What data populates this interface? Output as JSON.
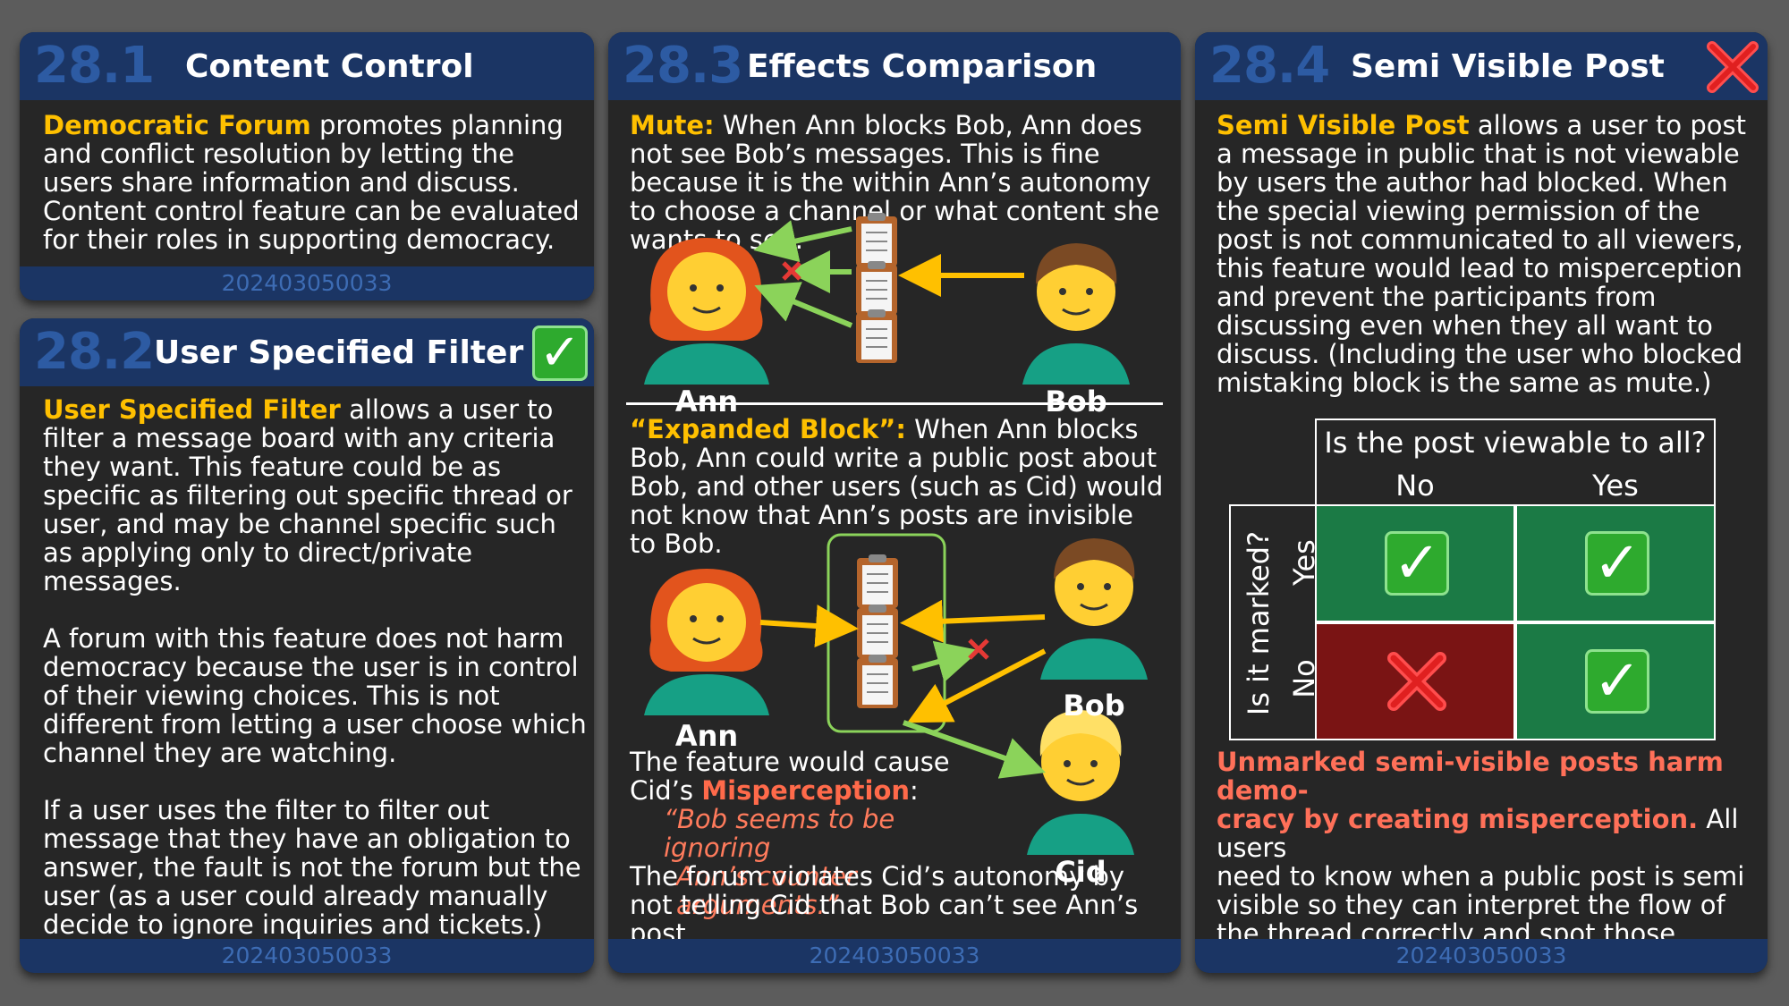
{
  "card1": {
    "number": "28.1",
    "title": "Content Control",
    "highlight": "Democratic Forum",
    "text": " promotes planning and conflict resolution by letting the users share information and discuss. Content control feature can be evaluated for their roles in supporting democracy.",
    "footer": "202403050033"
  },
  "card2": {
    "number": "28.2",
    "title": "User Specified Filter",
    "status_icon": "green-check-icon",
    "highlight": "User Specified Filter",
    "para1": " allows a user to filter a message board with any criteria they want. This feature could be as specific as filtering out specific thread or user, and may be channel specific such as applying only to direct/private messages.",
    "para2": "A forum with this feature does not harm democracy because the user is in control of their viewing choices. This is not different from letting a user choose which channel they are watching.",
    "para3": "If a user uses the filter to filter out message that they have an obligation to answer, the fault is not the forum but the user (as a user could already manually decide to ignore inquiries and tickets.)",
    "footer": "202403050033"
  },
  "card3": {
    "number": "28.3",
    "title": "Effects Comparison",
    "mute_label": "Mute:",
    "mute_text": " When Ann blocks Bob, Ann does not see Bob’s messages. This is fine because it is the within Ann’s autonomy to choose a channel or what content she wants to see.",
    "expanded_label": "“Expanded Block”:",
    "expanded_text": " When Ann blocks Bob, Ann could write a public post about Bob, and other users (such as Cid) would not know that Ann’s posts are invisible to Bob.",
    "feature_line1": "The feature would cause",
    "feature_line2_prefix": "Cid’s ",
    "feature_misperception": "Misperception",
    "feature_colon": ":",
    "quote_line1": "“Bob seems to be ignoring",
    "quote_line2": "Ann’s counter arguments.”",
    "violation": "The forum violates Cid’s autonomy by not telling Cid that Bob can’t see Ann’s post.",
    "names": {
      "ann": "Ann",
      "bob": "Bob",
      "cid": "Cid"
    },
    "footer": "202403050033"
  },
  "card4": {
    "number": "28.4",
    "title": "Semi Visible Post",
    "status_icon": "red-x-icon",
    "highlight": "Semi Visible Post",
    "text": " allows a user to post a message in public that is not viewable by users the author had blocked. When the special viewing permission of the post is not communicated to all viewers, this feature would lead to misperception and prevent the participants from discussing even when they all want to discuss. (Including the user who blocked mistaking block is the same as mute.)",
    "grid": {
      "col_header": "Is the post viewable to all?",
      "cols": [
        "No",
        "Yes"
      ],
      "row_header": "Is it marked?",
      "rows": [
        "Yes",
        "No"
      ],
      "cells": [
        [
          "check",
          "check"
        ],
        [
          "cross",
          "check"
        ]
      ],
      "colors": {
        "good": "#1b7a45",
        "bad": "#7a1414"
      }
    },
    "conclusion_highlight_1": "Unmarked semi-visible posts harm demo-",
    "conclusion_highlight_2": "cracy by creating misperception.",
    "conclusion_text_1": " All users",
    "conclusion_text_2": "need to know when a public post is semi visible so they can interpret the flow of the thread correctly and spot those exploiting the feature to discredit other users.",
    "footer": "202403050033"
  },
  "colors": {
    "header": "#1b3564",
    "highlight": "#ffc000",
    "green_arrow": "#8bd35a",
    "yellow_arrow": "#ffc000"
  }
}
